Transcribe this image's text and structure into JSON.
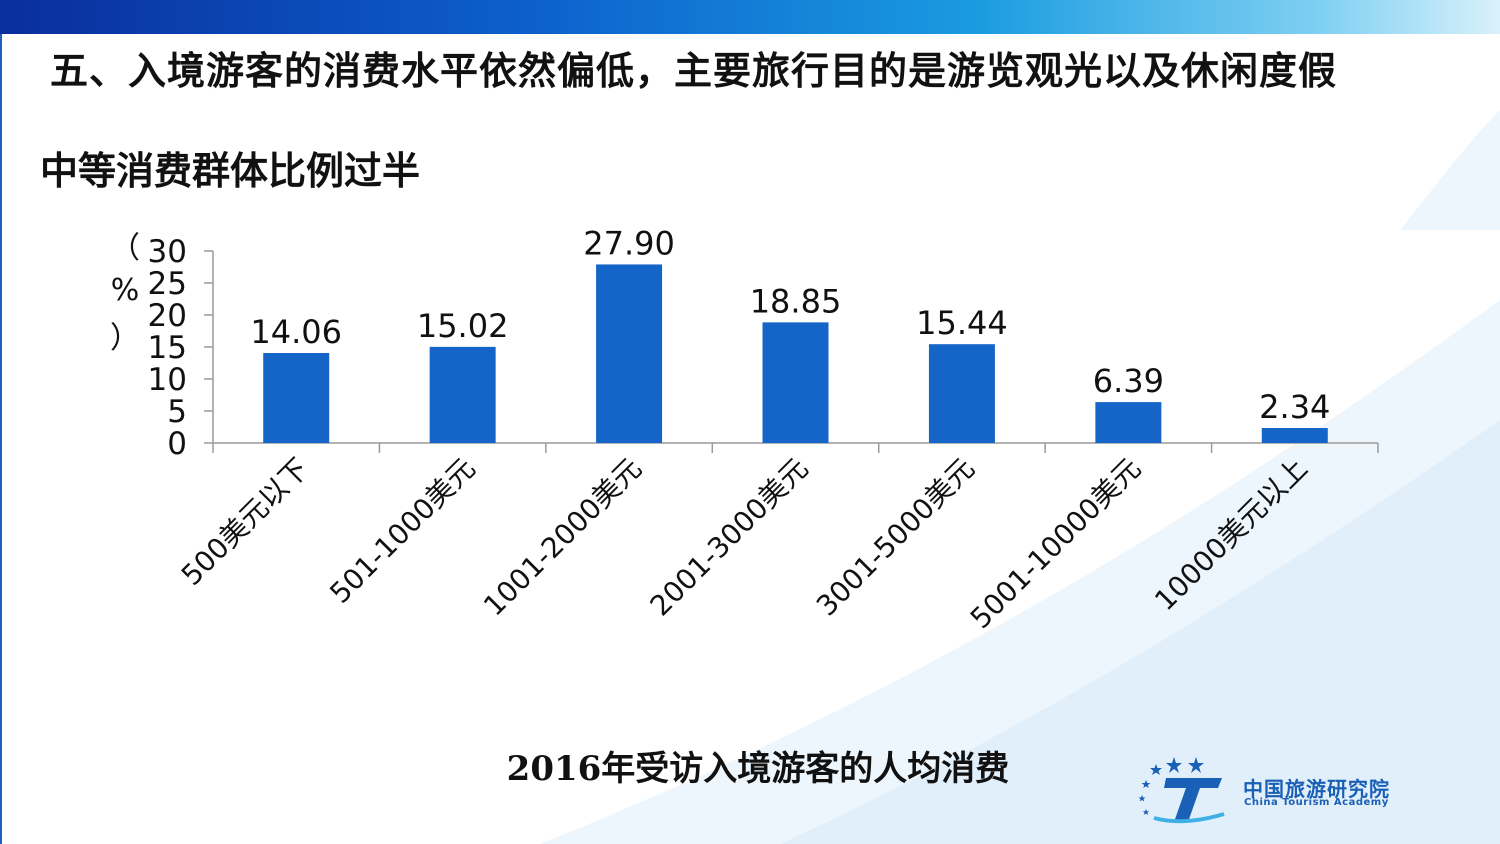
{
  "slide": {
    "title": "五、入境游客的消费水平依然偏低，主要旅行目的是游览观光以及休闲度假",
    "subtitle": "中等消费群体比例过半",
    "caption": "2016年受访入境游客的人均消费"
  },
  "logo": {
    "name_cn": "中国旅游研究院",
    "name_en": "China Tourism Academy"
  },
  "colors": {
    "bar": "#1565c8",
    "header_bar": "#0c5fcc",
    "logo": "#1960b6"
  },
  "chart_data": {
    "type": "bar",
    "ylabel": "（%）",
    "ylim": [
      0,
      30
    ],
    "yticks": [
      0,
      5,
      10,
      15,
      20,
      25,
      30
    ],
    "grid": false,
    "legend": "none",
    "categories": [
      "500美元以下",
      "501-1000美元",
      "1001-2000美元",
      "2001-3000美元",
      "3001-5000美元",
      "5001-10000美元",
      "10000美元以上"
    ],
    "values": [
      14.06,
      15.02,
      27.9,
      18.85,
      15.44,
      6.39,
      2.34
    ],
    "data_labels": [
      "14.06",
      "15.02",
      "27.90",
      "18.85",
      "15.44",
      "6.39",
      "2.34"
    ]
  }
}
